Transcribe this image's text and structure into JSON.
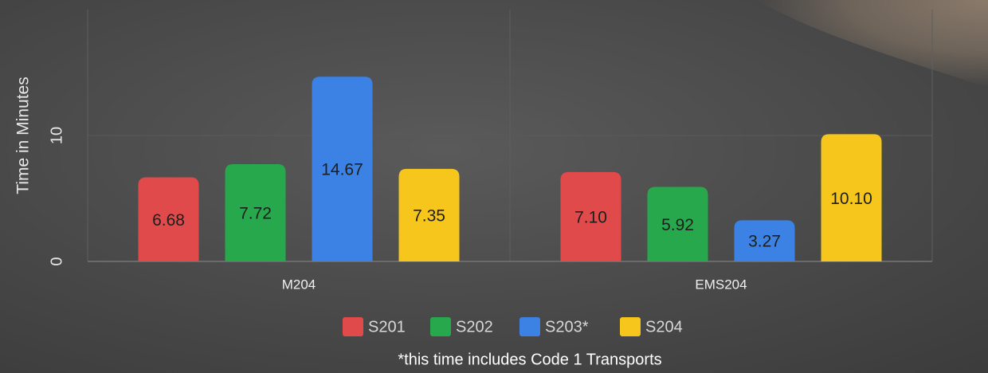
{
  "chart_data": {
    "type": "bar",
    "y_label": "Time in Minutes",
    "categories": [
      "M204",
      "EMS204"
    ],
    "series": [
      {
        "name": "S201",
        "color": "#e04a4a",
        "values": [
          6.68,
          7.1
        ],
        "value_labels": [
          "6.68",
          "7.10"
        ]
      },
      {
        "name": "S202",
        "color": "#27a84d",
        "values": [
          7.72,
          5.92
        ],
        "value_labels": [
          "7.72",
          "5.92"
        ]
      },
      {
        "name": "S203*",
        "color": "#3b82e4",
        "values": [
          14.67,
          3.27
        ],
        "value_labels": [
          "14.67",
          "3.27"
        ]
      },
      {
        "name": "S204",
        "color": "#f6c61c",
        "values": [
          7.35,
          10.1
        ],
        "value_labels": [
          "7.35",
          "10.10"
        ]
      }
    ],
    "ylim": [
      0,
      20
    ],
    "yticks": [
      0,
      10
    ],
    "grid": true,
    "footnote": "*this time includes Code 1 Transports"
  }
}
